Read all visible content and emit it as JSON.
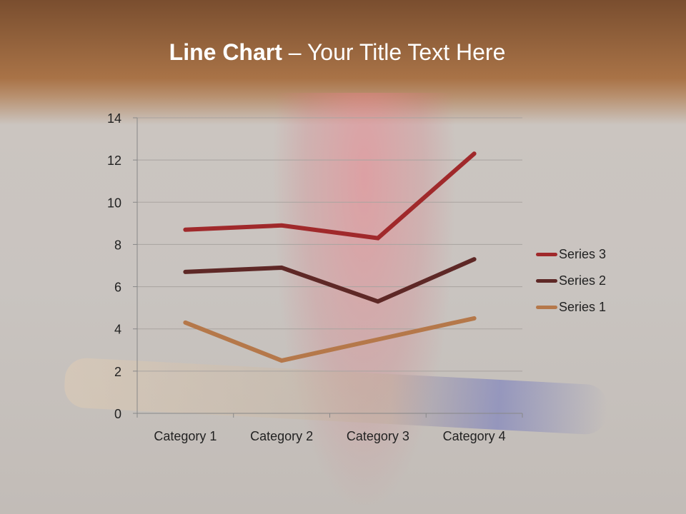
{
  "title": {
    "bold": "Line Chart",
    "rest": " – Your Title Text Here"
  },
  "chart_data": {
    "type": "line",
    "categories": [
      "Category 1",
      "Category 2",
      "Category 3",
      "Category 4"
    ],
    "series": [
      {
        "name": "Series 1",
        "values": [
          4.3,
          2.5,
          3.5,
          4.5
        ],
        "color": "#b5784a"
      },
      {
        "name": "Series 2",
        "values": [
          6.7,
          6.9,
          5.3,
          7.3
        ],
        "color": "#5e2826"
      },
      {
        "name": "Series 3",
        "values": [
          8.7,
          8.9,
          8.3,
          12.3
        ],
        "color": "#a0292b"
      }
    ],
    "ylim": [
      0,
      14
    ],
    "yticks": [
      "0",
      "2",
      "4",
      "6",
      "8",
      "10",
      "12",
      "14"
    ],
    "grid": true,
    "legend": "right"
  }
}
